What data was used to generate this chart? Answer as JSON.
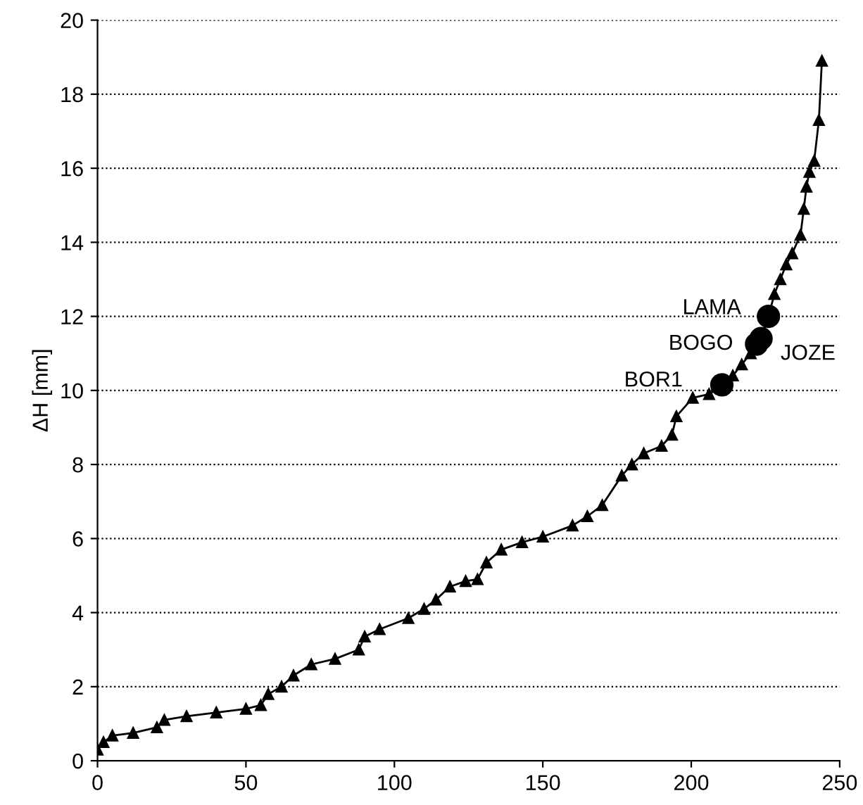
{
  "chart_data": {
    "type": "line",
    "ylabel": "ΔH [mm]",
    "xlim": [
      0,
      250
    ],
    "ylim": [
      0,
      20
    ],
    "xticks": [
      0,
      50,
      100,
      150,
      200,
      250
    ],
    "yticks": [
      0,
      2,
      4,
      6,
      8,
      10,
      12,
      14,
      16,
      18,
      20
    ],
    "grid": "y",
    "line_style": "solid",
    "series": [
      {
        "marker": "triangle",
        "color": "#000000",
        "x": [
          0,
          2,
          5,
          12,
          20,
          22.5,
          30,
          40,
          50,
          55,
          57.5,
          62,
          66,
          72,
          80,
          88,
          90,
          95,
          104.7,
          110,
          114,
          118.7,
          124,
          128,
          131,
          136,
          143,
          150,
          160,
          165,
          170,
          176.6,
          180,
          184,
          190,
          193.5,
          195,
          200.5,
          206,
          210,
          214,
          217,
          220,
          222,
          224,
          226,
          228,
          230,
          232,
          234,
          236.8,
          237.9,
          238.8,
          239.8,
          241.4,
          243,
          244
        ],
        "values": [
          0.3,
          0.5,
          0.68,
          0.75,
          0.9,
          1.1,
          1.2,
          1.3,
          1.4,
          1.5,
          1.8,
          2.0,
          2.3,
          2.6,
          2.75,
          3.0,
          3.35,
          3.55,
          3.85,
          4.1,
          4.35,
          4.7,
          4.85,
          4.9,
          5.35,
          5.7,
          5.9,
          6.05,
          6.35,
          6.6,
          6.9,
          7.7,
          8.0,
          8.3,
          8.5,
          8.8,
          9.3,
          9.8,
          9.9,
          10.1,
          10.4,
          10.7,
          11.0,
          11.3,
          11.5,
          12.0,
          12.6,
          13.0,
          13.4,
          13.7,
          14.2,
          14.9,
          15.5,
          15.9,
          16.2,
          17.3,
          18.9
        ]
      },
      {
        "type": "scatter",
        "marker": "circle",
        "color": "#000000",
        "x": [
          210.3,
          222,
          223.5,
          226
        ],
        "values": [
          10.15,
          11.25,
          11.4,
          12.0
        ]
      }
    ],
    "annotations": [
      {
        "text": "BOR1",
        "x": 210.3,
        "y": 10.15
      },
      {
        "text": "BOGO",
        "x": 222,
        "y": 11.25
      },
      {
        "text": "JOZE",
        "x": 223.5,
        "y": 11.4
      },
      {
        "text": "LAMA",
        "x": 226,
        "y": 12.0
      }
    ]
  }
}
